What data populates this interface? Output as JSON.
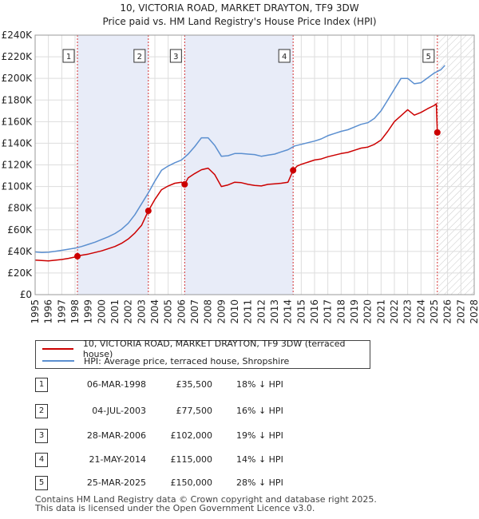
{
  "chart_data": {
    "type": "line",
    "title": "10, VICTORIA ROAD, MARKET DRAYTON, TF9 3DW",
    "subtitle": "Price paid vs. HM Land Registry's House Price Index (HPI)",
    "xlim": [
      1995,
      2028
    ],
    "ylim": [
      0,
      240000
    ],
    "x_ticks": [
      "1995",
      "1996",
      "1997",
      "1998",
      "1999",
      "2000",
      "2001",
      "2002",
      "2003",
      "2004",
      "2005",
      "2006",
      "2007",
      "2008",
      "2009",
      "2010",
      "2011",
      "2012",
      "2013",
      "2014",
      "2015",
      "2016",
      "2017",
      "2018",
      "2019",
      "2020",
      "2021",
      "2022",
      "2023",
      "2024",
      "2025",
      "2026",
      "2027",
      "2028"
    ],
    "y_ticks": [
      {
        "value": 0,
        "label": "£0"
      },
      {
        "value": 20000,
        "label": "£20K"
      },
      {
        "value": 40000,
        "label": "£40K"
      },
      {
        "value": 60000,
        "label": "£60K"
      },
      {
        "value": 80000,
        "label": "£80K"
      },
      {
        "value": 100000,
        "label": "£100K"
      },
      {
        "value": 120000,
        "label": "£120K"
      },
      {
        "value": 140000,
        "label": "£140K"
      },
      {
        "value": 160000,
        "label": "£160K"
      },
      {
        "value": 180000,
        "label": "£180K"
      },
      {
        "value": 200000,
        "label": "£200K"
      },
      {
        "value": 220000,
        "label": "£220K"
      },
      {
        "value": 240000,
        "label": "£240K"
      }
    ],
    "grid": true,
    "shaded_ranges": [
      [
        1998.18,
        2003.51
      ],
      [
        2006.24,
        2014.39
      ]
    ],
    "future_hatch_from": 2025.23,
    "series": [
      {
        "name": "10, VICTORIA ROAD, MARKET DRAYTON, TF9 3DW (terraced house)",
        "color": "#cc0000",
        "x": [
          1995.0,
          1995.5,
          1996.0,
          1996.5,
          1997.0,
          1997.5,
          1998.0,
          1998.18,
          1998.5,
          1999.0,
          1999.5,
          2000.0,
          2000.5,
          2001.0,
          2001.5,
          2002.0,
          2002.5,
          2003.0,
          2003.51,
          2004.0,
          2004.5,
          2005.0,
          2005.5,
          2006.0,
          2006.24,
          2006.5,
          2007.0,
          2007.5,
          2008.0,
          2008.5,
          2009.0,
          2009.5,
          2010.0,
          2010.5,
          2011.0,
          2011.5,
          2012.0,
          2012.5,
          2013.0,
          2013.5,
          2014.0,
          2014.39,
          2014.7,
          2015.0,
          2015.5,
          2016.0,
          2016.5,
          2017.0,
          2017.5,
          2018.0,
          2018.5,
          2019.0,
          2019.5,
          2020.0,
          2020.5,
          2021.0,
          2021.5,
          2022.0,
          2022.5,
          2023.0,
          2023.5,
          2024.0,
          2024.5,
          2025.0,
          2025.15,
          2025.23,
          2025.4
        ],
        "values": [
          32000,
          31500,
          31200,
          31800,
          32500,
          33500,
          34800,
          35500,
          36500,
          37500,
          39000,
          40500,
          42500,
          44500,
          47500,
          51500,
          57000,
          64000,
          77500,
          88000,
          97000,
          100500,
          103000,
          104000,
          102000,
          108000,
          112000,
          115500,
          117000,
          111000,
          100000,
          101500,
          104000,
          103500,
          102000,
          101000,
          100500,
          102000,
          102500,
          103000,
          104000,
          115000,
          119000,
          120500,
          122500,
          124500,
          125500,
          127500,
          129000,
          130500,
          131500,
          133500,
          135500,
          136500,
          139000,
          143000,
          151000,
          160000,
          165500,
          171000,
          166000,
          168500,
          172000,
          175000,
          176500,
          150000,
          148000
        ]
      },
      {
        "name": "HPI: Average price, terraced house, Shropshire",
        "color": "#5b8fd0",
        "x": [
          1995.0,
          1995.5,
          1996.0,
          1996.5,
          1997.0,
          1997.5,
          1998.0,
          1998.5,
          1999.0,
          1999.5,
          2000.0,
          2000.5,
          2001.0,
          2001.5,
          2002.0,
          2002.5,
          2003.0,
          2003.5,
          2004.0,
          2004.5,
          2005.0,
          2005.5,
          2006.0,
          2006.5,
          2007.0,
          2007.5,
          2008.0,
          2008.5,
          2009.0,
          2009.5,
          2010.0,
          2010.5,
          2011.0,
          2011.5,
          2012.0,
          2012.5,
          2013.0,
          2013.5,
          2014.0,
          2014.5,
          2015.0,
          2015.5,
          2016.0,
          2016.5,
          2017.0,
          2017.5,
          2018.0,
          2018.5,
          2019.0,
          2019.5,
          2020.0,
          2020.5,
          2021.0,
          2021.5,
          2022.0,
          2022.5,
          2023.0,
          2023.5,
          2024.0,
          2024.5,
          2025.0,
          2025.5,
          2025.8
        ],
        "values": [
          39500,
          39000,
          39200,
          40000,
          41000,
          42000,
          43000,
          44500,
          46500,
          48500,
          51000,
          53500,
          56500,
          60500,
          66000,
          74000,
          84000,
          94000,
          105000,
          115000,
          119000,
          122000,
          124500,
          130000,
          137000,
          145000,
          145000,
          138000,
          128000,
          128500,
          130500,
          130500,
          130000,
          129500,
          128000,
          129000,
          130000,
          132000,
          134000,
          137500,
          139000,
          140500,
          142000,
          144000,
          147000,
          149000,
          151000,
          152500,
          155000,
          157500,
          159000,
          163000,
          170000,
          180000,
          190000,
          200000,
          200000,
          195000,
          196000,
          200500,
          205000,
          208000,
          212000
        ]
      }
    ],
    "sale_markers": [
      {
        "n": "1",
        "x": 1998.18,
        "y": 35500
      },
      {
        "n": "2",
        "x": 2003.51,
        "y": 77500
      },
      {
        "n": "3",
        "x": 2006.24,
        "y": 102000
      },
      {
        "n": "4",
        "x": 2014.39,
        "y": 115000
      },
      {
        "n": "5",
        "x": 2025.23,
        "y": 150000
      }
    ]
  },
  "legend": {
    "property_label": "10, VICTORIA ROAD, MARKET DRAYTON, TF9 3DW (terraced house)",
    "hpi_label": "HPI: Average price, terraced house, Shropshire",
    "property_color": "#cc0000",
    "hpi_color": "#5b8fd0"
  },
  "sales": [
    {
      "n": "1",
      "date": "06-MAR-1998",
      "price": "£35,500",
      "hpi": "18% ↓ HPI"
    },
    {
      "n": "2",
      "date": "04-JUL-2003",
      "price": "£77,500",
      "hpi": "16% ↓ HPI"
    },
    {
      "n": "3",
      "date": "28-MAR-2006",
      "price": "£102,000",
      "hpi": "19% ↓ HPI"
    },
    {
      "n": "4",
      "date": "21-MAY-2014",
      "price": "£115,000",
      "hpi": "14% ↓ HPI"
    },
    {
      "n": "5",
      "date": "25-MAR-2025",
      "price": "£150,000",
      "hpi": "28% ↓ HPI"
    }
  ],
  "footer": {
    "line1": "Contains HM Land Registry data © Crown copyright and database right 2025.",
    "line2": "This data is licensed under the Open Government Licence v3.0."
  }
}
